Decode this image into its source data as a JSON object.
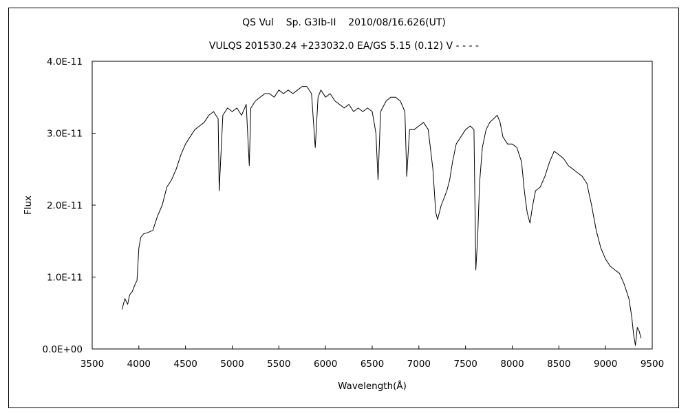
{
  "chart_data": {
    "type": "line",
    "title": "QS Vul    Sp. G3Ib-II    2010/08/16.626(UT)",
    "subtitle": "VULQS 201530.24 +233032.0 EA/GS 5.15 (0.12) V - - - -",
    "xlabel": "Wavelength(Å)",
    "ylabel": "Flux",
    "xlim": [
      3500,
      9500
    ],
    "ylim": [
      0,
      4e-11
    ],
    "xticks": [
      "3500",
      "4000",
      "4500",
      "5000",
      "5500",
      "6000",
      "6500",
      "7000",
      "7500",
      "8000",
      "8500",
      "9000",
      "9500"
    ],
    "yticks": [
      "0.0E+00",
      "1.0E-11",
      "2.0E-11",
      "3.0E-11",
      "4.0E-11"
    ],
    "grid": false,
    "line_color": "#000000",
    "series": [
      {
        "x": [
          3820,
          3850,
          3880,
          3900,
          3930,
          3960,
          3980,
          4000,
          4020,
          4050,
          4100,
          4150,
          4200,
          4250,
          4300,
          4350,
          4400,
          4450,
          4500,
          4550,
          4600,
          4650,
          4700,
          4750,
          4800,
          4850,
          4861,
          4900,
          4950,
          5000,
          5050,
          5100,
          5150,
          5183,
          5200,
          5250,
          5300,
          5350,
          5400,
          5450,
          5500,
          5550,
          5600,
          5650,
          5700,
          5750,
          5800,
          5850,
          5890,
          5920,
          5950,
          6000,
          6050,
          6100,
          6150,
          6200,
          6250,
          6300,
          6350,
          6400,
          6450,
          6500,
          6540,
          6563,
          6590,
          6650,
          6700,
          6750,
          6800,
          6850,
          6870,
          6900,
          6950,
          7000,
          7050,
          7100,
          7150,
          7180,
          7200,
          7240,
          7270,
          7300,
          7330,
          7360,
          7400,
          7450,
          7500,
          7550,
          7590,
          7610,
          7630,
          7650,
          7680,
          7720,
          7760,
          7800,
          7840,
          7870,
          7900,
          7950,
          8000,
          8050,
          8100,
          8130,
          8160,
          8190,
          8220,
          8250,
          8300,
          8350,
          8400,
          8450,
          8500,
          8550,
          8600,
          8650,
          8700,
          8750,
          8800,
          8850,
          8900,
          8950,
          9000,
          9050,
          9100,
          9150,
          9200,
          9250,
          9280,
          9300,
          9320,
          9340,
          9360,
          9380
        ],
        "y": [
          5.5e-12,
          7e-12,
          6.2e-12,
          7.5e-12,
          8e-12,
          9e-12,
          9.5e-12,
          1.4e-11,
          1.55e-11,
          1.6e-11,
          1.62e-11,
          1.65e-11,
          1.85e-11,
          2e-11,
          2.25e-11,
          2.35e-11,
          2.5e-11,
          2.7e-11,
          2.85e-11,
          2.95e-11,
          3.05e-11,
          3.1e-11,
          3.15e-11,
          3.25e-11,
          3.3e-11,
          3.2e-11,
          2.2e-11,
          3.25e-11,
          3.35e-11,
          3.3e-11,
          3.35e-11,
          3.25e-11,
          3.4e-11,
          2.55e-11,
          3.35e-11,
          3.45e-11,
          3.5e-11,
          3.55e-11,
          3.55e-11,
          3.5e-11,
          3.6e-11,
          3.55e-11,
          3.6e-11,
          3.55e-11,
          3.6e-11,
          3.65e-11,
          3.65e-11,
          3.55e-11,
          2.8e-11,
          3.5e-11,
          3.6e-11,
          3.5e-11,
          3.55e-11,
          3.45e-11,
          3.4e-11,
          3.35e-11,
          3.4e-11,
          3.3e-11,
          3.35e-11,
          3.3e-11,
          3.35e-11,
          3.3e-11,
          3e-11,
          2.35e-11,
          3.3e-11,
          3.45e-11,
          3.5e-11,
          3.5e-11,
          3.45e-11,
          3.3e-11,
          2.4e-11,
          3.05e-11,
          3.05e-11,
          3.1e-11,
          3.15e-11,
          3.05e-11,
          2.5e-11,
          1.9e-11,
          1.8e-11,
          2e-11,
          2.1e-11,
          2.2e-11,
          2.35e-11,
          2.6e-11,
          2.85e-11,
          2.95e-11,
          3.05e-11,
          3.1e-11,
          3.05e-11,
          1.1e-11,
          1.55e-11,
          2.3e-11,
          2.8e-11,
          3.05e-11,
          3.15e-11,
          3.2e-11,
          3.25e-11,
          3.15e-11,
          2.95e-11,
          2.85e-11,
          2.85e-11,
          2.8e-11,
          2.6e-11,
          2.2e-11,
          1.9e-11,
          1.75e-11,
          2e-11,
          2.2e-11,
          2.25e-11,
          2.4e-11,
          2.6e-11,
          2.75e-11,
          2.7e-11,
          2.65e-11,
          2.55e-11,
          2.5e-11,
          2.45e-11,
          2.4e-11,
          2.3e-11,
          2e-11,
          1.65e-11,
          1.4e-11,
          1.25e-11,
          1.15e-11,
          1.1e-11,
          1.05e-11,
          9e-12,
          7e-12,
          4.5e-12,
          2e-12,
          5e-13,
          3e-12,
          2.5e-12,
          1.5e-12
        ]
      }
    ]
  }
}
